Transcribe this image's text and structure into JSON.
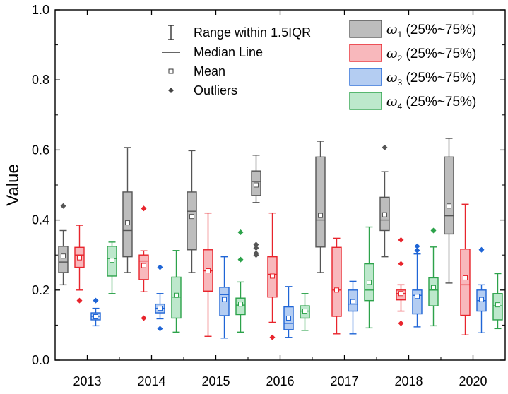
{
  "chart_data": {
    "type": "box",
    "title": "",
    "xlabel": "",
    "ylabel": "Value",
    "ylim": [
      0.0,
      1.0
    ],
    "yticks": [
      "0.0",
      "0.2",
      "0.4",
      "0.6",
      "0.8",
      "1.0"
    ],
    "categories": [
      "2013",
      "2014",
      "2015",
      "2016",
      "2017",
      "2018",
      "2020"
    ],
    "legend_symbols": {
      "range": "Range within 1.5IQR",
      "median": "Median Line",
      "mean": "Mean",
      "outliers": "Outliers"
    },
    "series": [
      {
        "name": "ω1",
        "legend_var": "ω",
        "legend_sub": "1",
        "legend_suffix": " (25%~75%)",
        "fill": "#bdbdbd",
        "stroke": "#555555",
        "boxes": [
          {
            "whisker_low": 0.215,
            "q1": 0.25,
            "median": 0.28,
            "q3": 0.325,
            "whisker_high": 0.37,
            "mean": 0.297,
            "outliers": [
              0.44
            ]
          },
          {
            "whisker_low": 0.25,
            "q1": 0.295,
            "median": 0.37,
            "q3": 0.48,
            "whisker_high": 0.607,
            "mean": 0.392,
            "outliers": []
          },
          {
            "whisker_low": 0.25,
            "q1": 0.315,
            "median": 0.425,
            "q3": 0.48,
            "whisker_high": 0.598,
            "mean": 0.41,
            "outliers": []
          },
          {
            "whisker_low": 0.45,
            "q1": 0.47,
            "median": 0.51,
            "q3": 0.54,
            "whisker_high": 0.585,
            "mean": 0.5,
            "outliers": [
              0.33,
              0.32,
              0.305,
              0.3
            ]
          },
          {
            "whisker_low": 0.25,
            "q1": 0.323,
            "median": 0.4,
            "q3": 0.58,
            "whisker_high": 0.625,
            "mean": 0.413,
            "outliers": []
          },
          {
            "whisker_low": 0.295,
            "q1": 0.37,
            "median": 0.4,
            "q3": 0.465,
            "whisker_high": 0.538,
            "mean": 0.415,
            "outliers": [
              0.607
            ]
          },
          {
            "whisker_low": 0.22,
            "q1": 0.36,
            "median": 0.412,
            "q3": 0.58,
            "whisker_high": 0.633,
            "mean": 0.44,
            "outliers": []
          }
        ]
      },
      {
        "name": "ω2",
        "legend_var": "ω",
        "legend_sub": "2",
        "legend_suffix": " (25%~75%)",
        "fill": "#f8b8bc",
        "stroke": "#e8242c",
        "boxes": [
          {
            "whisker_low": 0.2,
            "q1": 0.265,
            "median": 0.3,
            "q3": 0.322,
            "whisker_high": 0.385,
            "mean": 0.292,
            "outliers": [
              0.17
            ]
          },
          {
            "whisker_low": 0.195,
            "q1": 0.23,
            "median": 0.283,
            "q3": 0.3,
            "whisker_high": 0.312,
            "mean": 0.27,
            "outliers": [
              0.433,
              0.12
            ]
          },
          {
            "whisker_low": 0.068,
            "q1": 0.197,
            "median": 0.255,
            "q3": 0.315,
            "whisker_high": 0.42,
            "mean": 0.255,
            "outliers": []
          },
          {
            "whisker_low": 0.108,
            "q1": 0.18,
            "median": 0.245,
            "q3": 0.295,
            "whisker_high": 0.42,
            "mean": 0.24,
            "outliers": [
              0.065
            ]
          },
          {
            "whisker_low": 0.075,
            "q1": 0.125,
            "median": 0.2,
            "q3": 0.322,
            "whisker_high": 0.348,
            "mean": 0.2,
            "outliers": []
          },
          {
            "whisker_low": 0.14,
            "q1": 0.172,
            "median": 0.19,
            "q3": 0.2,
            "whisker_high": 0.215,
            "mean": 0.19,
            "outliers": [
              0.343,
              0.275,
              0.105
            ]
          },
          {
            "whisker_low": 0.072,
            "q1": 0.128,
            "median": 0.215,
            "q3": 0.317,
            "whisker_high": 0.445,
            "mean": 0.235,
            "outliers": []
          }
        ]
      },
      {
        "name": "ω3",
        "legend_var": "ω",
        "legend_sub": "3",
        "legend_suffix": " (25%~75%)",
        "fill": "#b4cdf2",
        "stroke": "#1f65d6",
        "boxes": [
          {
            "whisker_low": 0.098,
            "q1": 0.115,
            "median": 0.125,
            "q3": 0.135,
            "whisker_high": 0.148,
            "mean": 0.124,
            "outliers": [
              0.17
            ]
          },
          {
            "whisker_low": 0.118,
            "q1": 0.135,
            "median": 0.148,
            "q3": 0.16,
            "whisker_high": 0.19,
            "mean": 0.148,
            "outliers": [
              0.265,
              0.09
            ]
          },
          {
            "whisker_low": 0.063,
            "q1": 0.127,
            "median": 0.187,
            "q3": 0.208,
            "whisker_high": 0.295,
            "mean": 0.173,
            "outliers": []
          },
          {
            "whisker_low": 0.065,
            "q1": 0.087,
            "median": 0.105,
            "q3": 0.152,
            "whisker_high": 0.21,
            "mean": 0.12,
            "outliers": []
          },
          {
            "whisker_low": 0.075,
            "q1": 0.14,
            "median": 0.16,
            "q3": 0.2,
            "whisker_high": 0.225,
            "mean": 0.167,
            "outliers": []
          },
          {
            "whisker_low": 0.095,
            "q1": 0.132,
            "median": 0.185,
            "q3": 0.2,
            "whisker_high": 0.303,
            "mean": 0.182,
            "outliers": [
              0.325,
              0.313
            ]
          },
          {
            "whisker_low": 0.078,
            "q1": 0.14,
            "median": 0.17,
            "q3": 0.2,
            "whisker_high": 0.215,
            "mean": 0.173,
            "outliers": [
              0.315
            ]
          }
        ]
      },
      {
        "name": "ω4",
        "legend_var": "ω",
        "legend_sub": "4",
        "legend_suffix": " (25%~75%)",
        "fill": "#bde8cc",
        "stroke": "#2ca24a",
        "boxes": [
          {
            "whisker_low": 0.19,
            "q1": 0.24,
            "median": 0.29,
            "q3": 0.325,
            "whisker_high": 0.337,
            "mean": 0.285,
            "outliers": []
          },
          {
            "whisker_low": 0.08,
            "q1": 0.12,
            "median": 0.18,
            "q3": 0.237,
            "whisker_high": 0.313,
            "mean": 0.185,
            "outliers": []
          },
          {
            "whisker_low": 0.08,
            "q1": 0.13,
            "median": 0.157,
            "q3": 0.177,
            "whisker_high": 0.223,
            "mean": 0.16,
            "outliers": [
              0.365,
              0.287
            ]
          },
          {
            "whisker_low": 0.085,
            "q1": 0.12,
            "median": 0.14,
            "q3": 0.155,
            "whisker_high": 0.19,
            "mean": 0.14,
            "outliers": []
          },
          {
            "whisker_low": 0.092,
            "q1": 0.17,
            "median": 0.2,
            "q3": 0.275,
            "whisker_high": 0.38,
            "mean": 0.222,
            "outliers": []
          },
          {
            "whisker_low": 0.098,
            "q1": 0.155,
            "median": 0.2,
            "q3": 0.235,
            "whisker_high": 0.323,
            "mean": 0.207,
            "outliers": [
              0.37
            ]
          },
          {
            "whisker_low": 0.09,
            "q1": 0.115,
            "median": 0.155,
            "q3": 0.19,
            "whisker_high": 0.247,
            "mean": 0.158,
            "outliers": []
          }
        ]
      }
    ]
  }
}
